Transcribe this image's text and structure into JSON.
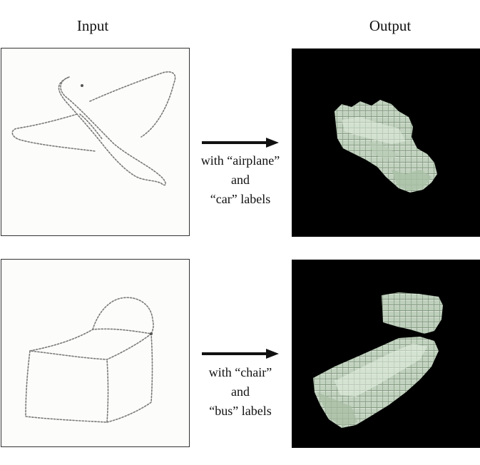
{
  "headers": {
    "input": "Input",
    "output": "Output"
  },
  "rows": [
    {
      "input_sketch": "airplane line sketch",
      "caption": [
        "with “airplane”",
        "and",
        "“car” labels"
      ],
      "output_render": "voxel car shape"
    },
    {
      "input_sketch": "chair line sketch",
      "caption": [
        "with “chair”",
        "and",
        "“bus” labels"
      ],
      "output_render": "voxel bus-chair shape"
    }
  ],
  "colors": {
    "sketch_line": "#7a7a7a",
    "sketch_bg": "#fcfcfa",
    "render_bg": "#000000",
    "voxel_fill": "#d4e6d2",
    "arrow": "#111111"
  }
}
